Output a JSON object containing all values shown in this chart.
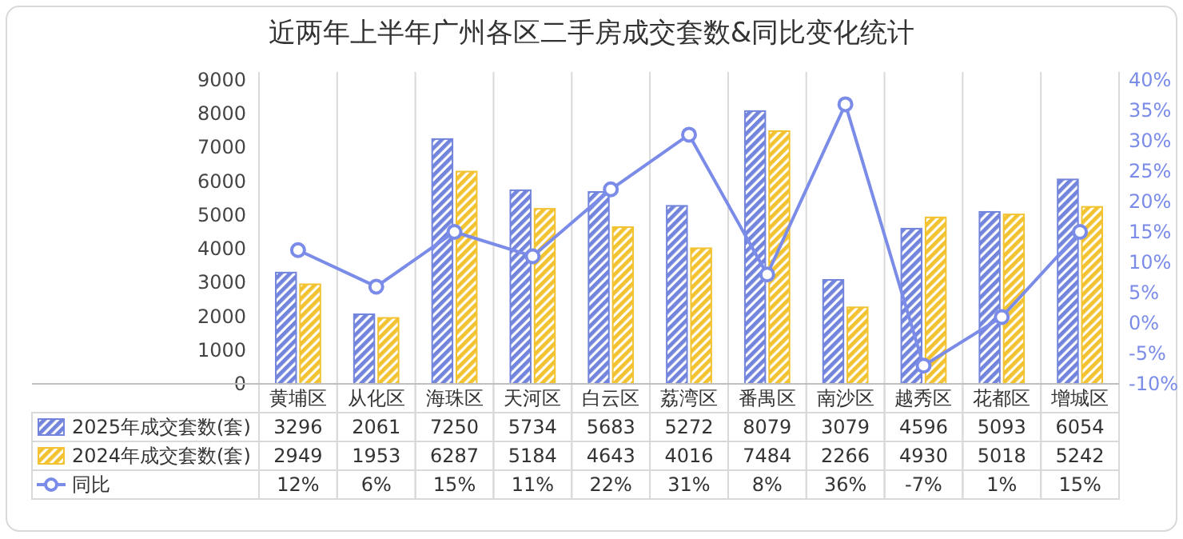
{
  "chart_data": {
    "type": "bar",
    "title": "近两年上半年广州各区二手房成交套数&同比变化统计",
    "categories": [
      "黄埔区",
      "从化区",
      "海珠区",
      "天河区",
      "白云区",
      "荔湾区",
      "番禺区",
      "南沙区",
      "越秀区",
      "花都区",
      "增城区"
    ],
    "series": [
      {
        "name": "2025年成交套数(套)",
        "color": "#7284dc",
        "values": [
          3296,
          2061,
          7250,
          5734,
          5683,
          5272,
          8079,
          3079,
          4596,
          5093,
          6054
        ]
      },
      {
        "name": "2024年成交套数(套)",
        "color": "#f2c230",
        "values": [
          2949,
          1953,
          6287,
          5184,
          4643,
          4016,
          7484,
          2266,
          4930,
          5018,
          5242
        ]
      },
      {
        "name": "同比",
        "type": "line",
        "axis": "y2",
        "color": "#7b8ce8",
        "marker": "circle",
        "values": [
          12,
          6,
          15,
          11,
          22,
          31,
          8,
          36,
          -7,
          1,
          15
        ],
        "value_labels": [
          "12%",
          "6%",
          "15%",
          "11%",
          "22%",
          "31%",
          "8%",
          "36%",
          "-7%",
          "1%",
          "15%"
        ]
      }
    ],
    "ylim": [
      0,
      9000
    ],
    "yticks": [
      0,
      1000,
      2000,
      3000,
      4000,
      5000,
      6000,
      7000,
      8000,
      9000
    ],
    "y2lim": [
      -10,
      40
    ],
    "y2ticks": [
      {
        "value": -10,
        "label": "-10%"
      },
      {
        "value": -5,
        "label": "-5%"
      },
      {
        "value": 0,
        "label": "0%"
      },
      {
        "value": 5,
        "label": "5%"
      },
      {
        "value": 10,
        "label": "10%"
      },
      {
        "value": 15,
        "label": "15%"
      },
      {
        "value": 20,
        "label": "20%"
      },
      {
        "value": 25,
        "label": "25%"
      },
      {
        "value": 30,
        "label": "30%"
      },
      {
        "value": 35,
        "label": "35%"
      },
      {
        "value": 40,
        "label": "40%"
      }
    ],
    "grid": "x",
    "legend": "bottom",
    "data_labels": true
  }
}
